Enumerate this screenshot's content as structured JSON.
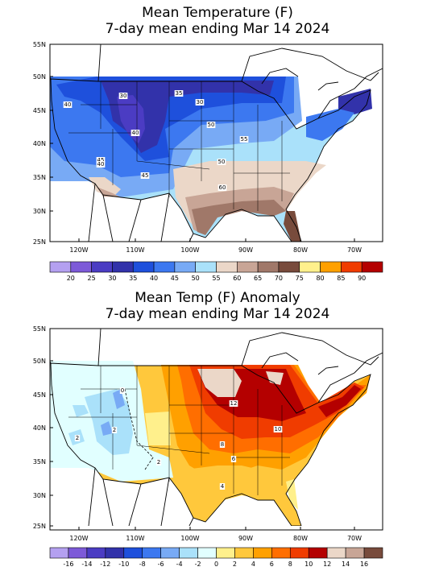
{
  "panels": [
    {
      "title_line1": "Mean Temperature (F)",
      "title_line2": "7-day mean ending Mar 14 2024",
      "lat_labels": [
        "55N",
        "50N",
        "45N",
        "40N",
        "35N",
        "30N",
        "25N"
      ],
      "lon_labels": [
        "120W",
        "110W",
        "100W",
        "90W",
        "80W",
        "70W"
      ],
      "contour_labels": [
        "40",
        "30",
        "35",
        "40",
        "45",
        "30",
        "50",
        "55",
        "45",
        "50",
        "40",
        "60"
      ],
      "legend": {
        "labels": [
          "20",
          "25",
          "30",
          "35",
          "40",
          "45",
          "50",
          "55",
          "60",
          "65",
          "70",
          "75",
          "80",
          "85",
          "90"
        ],
        "colors": [
          "#b4a0f0",
          "#7d5ad8",
          "#4b3cc3",
          "#3232aa",
          "#1e50dc",
          "#3c78f0",
          "#78aaf5",
          "#aae1fa",
          "#ebd7c8",
          "#c8a596",
          "#a07869",
          "#784b3c",
          "#fff08c",
          "#ffa000",
          "#f03c00",
          "#b40000"
        ]
      }
    },
    {
      "title_line1": "Mean Temp (F) Anomaly",
      "title_line2": "7-day mean ending Mar 14 2024",
      "lat_labels": [
        "55N",
        "50N",
        "45N",
        "40N",
        "35N",
        "30N",
        "25N"
      ],
      "lon_labels": [
        "120W",
        "110W",
        "100W",
        "90W",
        "80W",
        "70W"
      ],
      "contour_labels": [
        "0",
        "2",
        "2",
        "2",
        "12",
        "10",
        "8",
        "6",
        "4"
      ],
      "legend": {
        "labels": [
          "-16",
          "-14",
          "-12",
          "-10",
          "-8",
          "-6",
          "-4",
          "-2",
          "0",
          "2",
          "4",
          "6",
          "8",
          "10",
          "12",
          "14",
          "16"
        ],
        "colors": [
          "#b4a0f0",
          "#7d5ad8",
          "#4b3cc3",
          "#3232aa",
          "#1e50dc",
          "#3c78f0",
          "#78aaf5",
          "#aae1fa",
          "#e1ffff",
          "#fff08c",
          "#ffc83c",
          "#ffa000",
          "#ff6e00",
          "#f03c00",
          "#b40000",
          "#ebd7c8",
          "#c8a596",
          "#784b3c"
        ]
      }
    }
  ],
  "map_colors": {
    "ocean": "#ffffff",
    "land_outline": "#000000"
  }
}
